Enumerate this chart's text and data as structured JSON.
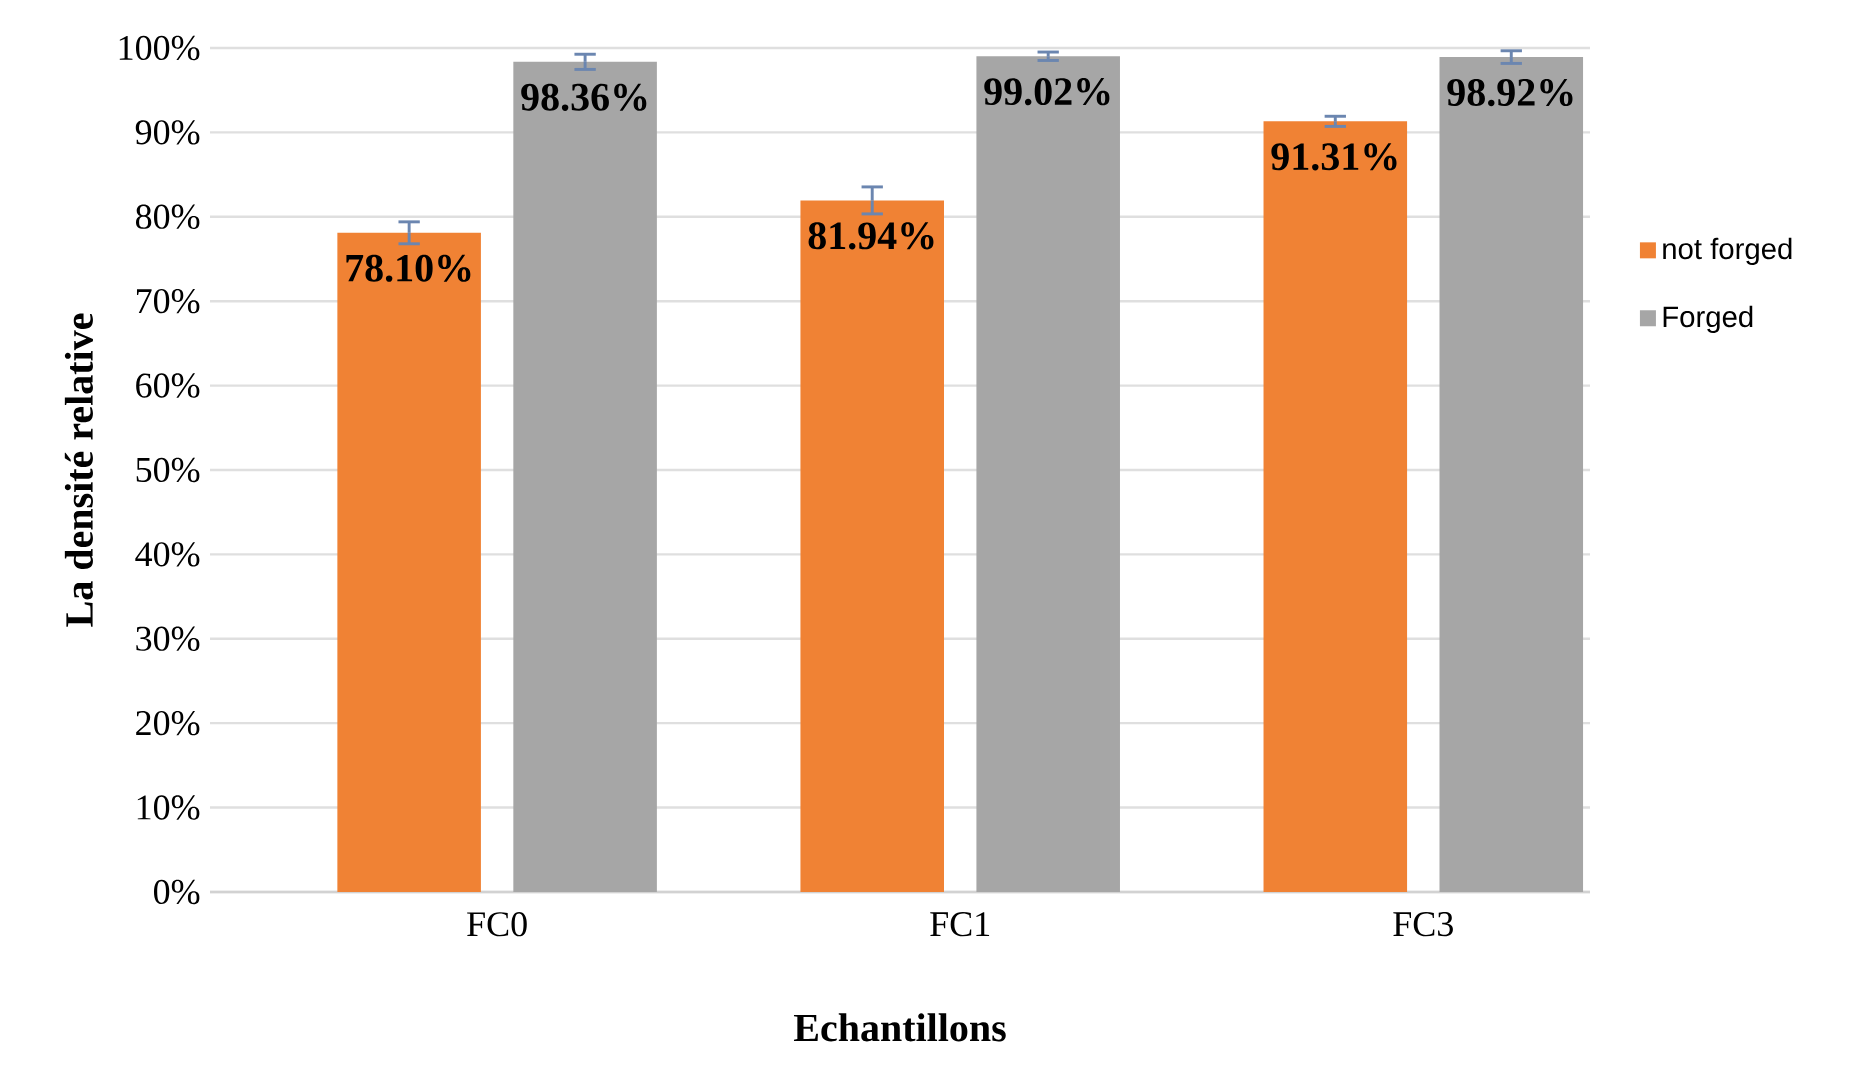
{
  "chart_data": {
    "type": "bar",
    "xlabel": "Echantillons",
    "ylabel": "La densité relative",
    "categories": [
      "FC0",
      "FC1",
      "FC3"
    ],
    "series": [
      {
        "name": "not forged",
        "color": "#f08234",
        "values": [
          78.1,
          81.94,
          91.31
        ],
        "errors": [
          1.3,
          1.6,
          0.6
        ],
        "value_labels": [
          "78.10%",
          "81.94%",
          "91.31%"
        ]
      },
      {
        "name": "Forged",
        "color": "#a6a6a6",
        "values": [
          98.36,
          99.02,
          98.92
        ],
        "errors": [
          0.9,
          0.5,
          0.75
        ],
        "value_labels": [
          "98.36%",
          "99.02%",
          "98.92%"
        ]
      }
    ],
    "ylim": [
      0,
      100
    ],
    "yticks": [
      {
        "value": 0,
        "label": "0%"
      },
      {
        "value": 10,
        "label": "10%"
      },
      {
        "value": 20,
        "label": "20%"
      },
      {
        "value": 30,
        "label": "30%"
      },
      {
        "value": 40,
        "label": "40%"
      },
      {
        "value": 50,
        "label": "50%"
      },
      {
        "value": 60,
        "label": "60%"
      },
      {
        "value": 70,
        "label": "70%"
      },
      {
        "value": 80,
        "label": "80%"
      },
      {
        "value": 90,
        "label": "90%"
      },
      {
        "value": 100,
        "label": "100%"
      }
    ],
    "grid": "y",
    "legend": "right"
  }
}
